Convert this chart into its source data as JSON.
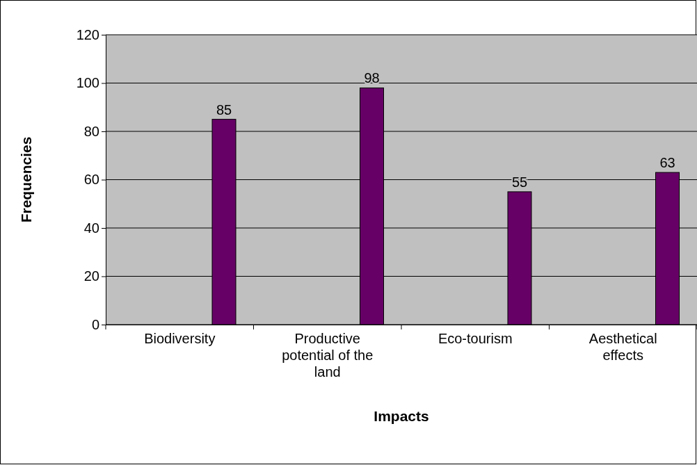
{
  "chart_data": {
    "type": "bar",
    "xlabel": "Impacts",
    "ylabel": "Frequencies",
    "categories": [
      "Biodiversity",
      "Productive potential of the land",
      "Eco-tourism",
      "Aesthetical effects"
    ],
    "values": [
      85,
      98,
      55,
      63
    ],
    "color": "#660066",
    "ylim": [
      0,
      120
    ],
    "yticks": [
      0,
      20,
      40,
      60,
      80,
      100,
      120
    ],
    "grid": "y",
    "data_labels": true
  }
}
